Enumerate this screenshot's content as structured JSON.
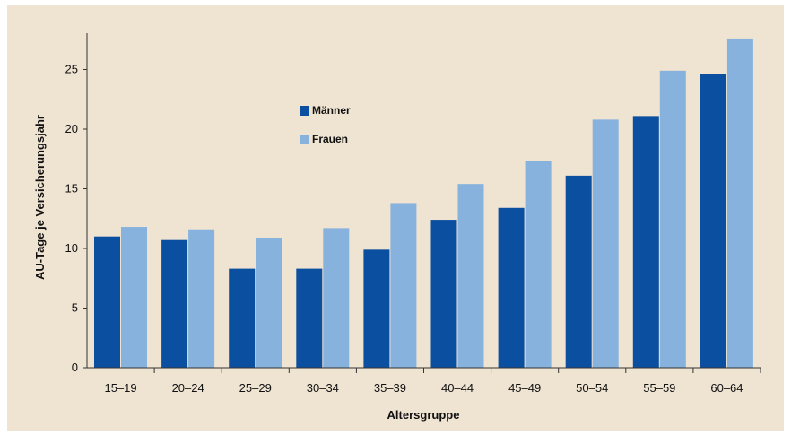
{
  "chart_data": {
    "type": "bar",
    "title": "",
    "xlabel": "Altersgruppe",
    "ylabel": "AU-Tage je Versicherungsjahr",
    "categories": [
      "15–19",
      "20–24",
      "25–29",
      "30–34",
      "35–39",
      "40–44",
      "45–49",
      "50–54",
      "55–59",
      "60–64"
    ],
    "series": [
      {
        "name": "Männer",
        "color": "#0b4fa0",
        "values": [
          11.0,
          10.7,
          8.3,
          8.3,
          9.9,
          12.4,
          13.4,
          16.1,
          21.1,
          24.6
        ]
      },
      {
        "name": "Frauen",
        "color": "#86b2dd",
        "values": [
          11.8,
          11.6,
          10.9,
          11.7,
          13.8,
          15.4,
          17.3,
          20.8,
          24.9,
          27.6
        ]
      }
    ],
    "ylim": [
      0,
      28
    ],
    "yticks": [
      0,
      5,
      10,
      15,
      20,
      25
    ],
    "legend_position": "top-left",
    "grid": false,
    "background": "#efe3d2"
  }
}
